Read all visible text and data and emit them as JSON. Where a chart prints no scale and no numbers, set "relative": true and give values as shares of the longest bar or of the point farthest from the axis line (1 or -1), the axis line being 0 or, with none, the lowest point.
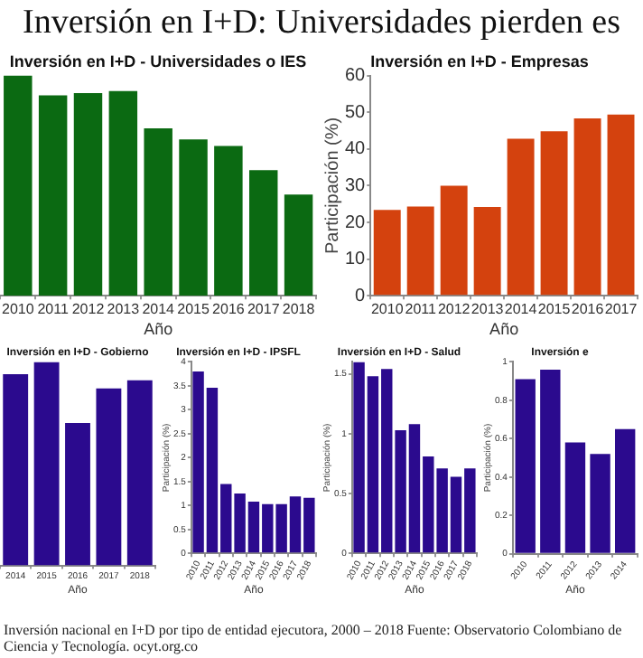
{
  "chart_data": [
    {
      "type": "other",
      "title": "Inversión en I+D: Universidades pierden es",
      "annotations": [
        "Inversión nacional en I+D por tipo de entidad ejecutora, 2000 – 2018 Fuente: Observatorio Colombiano de Ciencia y Tecnología. ocyt.org.co"
      ]
    },
    {
      "type": "bar",
      "title": "Inversión en I+D - Universidades o IES",
      "xlabel": "Año",
      "relative": true,
      "color": "#0b6a12",
      "categories": [
        "2010",
        "2011",
        "2012",
        "2013",
        "2014",
        "2015",
        "2016",
        "2017",
        "2018"
      ],
      "values": [
        1,
        0.91,
        0.92,
        0.93,
        0.76,
        0.71,
        0.68,
        0.57,
        0.46
      ]
    },
    {
      "type": "bar",
      "title": "Inversión en I+D - Empresas",
      "xlabel": "Año",
      "ylabel": "Participación (%)",
      "color": "#d4420e",
      "categories": [
        "2010",
        "2011",
        "2012",
        "2013",
        "2014",
        "2015",
        "2016",
        "2017"
      ],
      "values": [
        23.4,
        24.3,
        30,
        24.2,
        42.8,
        44.8,
        48.3,
        49.4
      ],
      "ylim": [
        0,
        60
      ],
      "yticks": [
        0,
        10,
        20,
        30,
        40,
        50,
        60
      ]
    },
    {
      "type": "bar",
      "title": "Inversión en I+D - Gobierno",
      "xlabel": "Año",
      "relative": true,
      "color": "#2b0a8e",
      "categories": [
        "2014",
        "2015",
        "2016",
        "2017",
        "2018"
      ],
      "values": [
        0.94,
        1,
        0.7,
        0.87,
        0.91
      ]
    },
    {
      "type": "bar",
      "title": "Inversión en I+D - IPSFL",
      "xlabel": "Año",
      "ylabel": "Participación (%)",
      "color": "#2b0a8e",
      "categories": [
        "2010",
        "2011",
        "2012",
        "2013",
        "2014",
        "2015",
        "2016",
        "2017",
        "2018"
      ],
      "values": [
        3.8,
        3.46,
        1.45,
        1.25,
        1.08,
        1.03,
        1.03,
        1.19,
        1.16
      ],
      "ylim": [
        0,
        4
      ],
      "yticks": [
        0,
        0.5,
        1,
        1.5,
        2,
        2.5,
        3,
        3.5,
        4
      ]
    },
    {
      "type": "bar",
      "title": "Inversión en I+D - Salud",
      "xlabel": "Año",
      "ylabel": "Participación (%)",
      "color": "#2b0a8e",
      "categories": [
        "2010",
        "2011",
        "2012",
        "2013",
        "2014",
        "2015",
        "2016",
        "2017",
        "2018"
      ],
      "values": [
        1.6,
        1.48,
        1.54,
        1.03,
        1.08,
        0.81,
        0.71,
        0.64,
        0.71
      ],
      "ylim": [
        0,
        1.6
      ],
      "yticks": [
        0,
        0.5,
        1,
        1.5
      ]
    },
    {
      "type": "bar",
      "title": "Inversión e",
      "xlabel": "Año",
      "ylabel": "Participación (%)",
      "color": "#2b0a8e",
      "categories": [
        "2010",
        "2011",
        "2012",
        "2013",
        "2014"
      ],
      "values": [
        0.91,
        0.96,
        0.58,
        0.52,
        0.65
      ],
      "ylim": [
        0,
        1
      ],
      "yticks": [
        0,
        0.2,
        0.4,
        0.6,
        0.8,
        1
      ]
    }
  ]
}
